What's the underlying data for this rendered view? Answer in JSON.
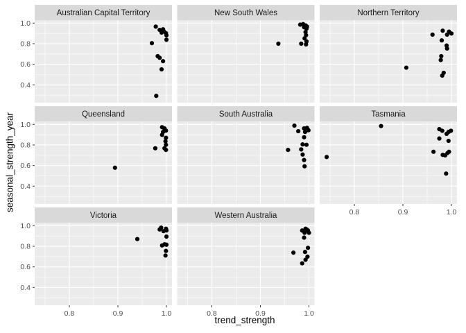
{
  "chart_data": {
    "type": "scatter",
    "title": "",
    "xlabel": "trend_strength",
    "ylabel": "seasonal_strength_year",
    "legend": "none",
    "grid": "on",
    "point_shape": "filled-circle",
    "xlim": [
      0.7286,
      1.0114
    ],
    "ylim": [
      0.227,
      1.029
    ],
    "x_ticks": [
      0.8,
      0.9,
      1.0
    ],
    "x_tick_labels": [
      "0.8",
      "0.9",
      "1.0"
    ],
    "y_ticks": [
      0.4,
      0.6,
      0.8,
      1.0
    ],
    "y_tick_labels": [
      "0.4",
      "0.6",
      "0.8",
      "1.0"
    ],
    "x_minor_ticks": [
      0.75,
      0.85,
      0.95
    ],
    "y_minor_ticks": [
      0.3,
      0.5,
      0.7,
      0.9
    ],
    "facets": [
      {
        "label": "Australian Capital Territory",
        "points": [
          [
            0.978,
            0.966
          ],
          [
            0.986,
            0.934
          ],
          [
            0.993,
            0.94
          ],
          [
            0.995,
            0.918
          ],
          [
            0.99,
            0.908
          ],
          [
            0.999,
            0.903
          ],
          [
            1.0,
            0.881
          ],
          [
            1.0,
            0.838
          ],
          [
            0.97,
            0.805
          ],
          [
            0.982,
            0.679
          ],
          [
            0.986,
            0.663
          ],
          [
            0.993,
            0.63
          ],
          [
            0.99,
            0.551
          ],
          [
            0.979,
            0.293
          ]
        ]
      },
      {
        "label": "New South Wales",
        "points": [
          [
            0.982,
            0.985
          ],
          [
            0.988,
            0.99
          ],
          [
            0.993,
            0.978
          ],
          [
            0.996,
            0.966
          ],
          [
            0.99,
            0.96
          ],
          [
            0.995,
            0.946
          ],
          [
            0.993,
            0.913
          ],
          [
            0.994,
            0.883
          ],
          [
            0.991,
            0.852
          ],
          [
            0.995,
            0.822
          ],
          [
            0.984,
            0.8
          ],
          [
            0.994,
            0.793
          ],
          [
            0.937,
            0.8
          ]
        ]
      },
      {
        "label": "Northern Territory",
        "points": [
          [
            0.982,
            0.926
          ],
          [
            0.995,
            0.917
          ],
          [
            1.0,
            0.899
          ],
          [
            0.991,
            0.888
          ],
          [
            0.961,
            0.888
          ],
          [
            0.98,
            0.832
          ],
          [
            0.99,
            0.782
          ],
          [
            0.991,
            0.753
          ],
          [
            0.979,
            0.679
          ],
          [
            0.978,
            0.641
          ],
          [
            0.907,
            0.567
          ],
          [
            0.984,
            0.517
          ],
          [
            0.981,
            0.49
          ]
        ]
      },
      {
        "label": "Queensland",
        "points": [
          [
            0.991,
            0.973
          ],
          [
            0.996,
            0.961
          ],
          [
            0.999,
            0.939
          ],
          [
            0.993,
            0.927
          ],
          [
            0.991,
            0.898
          ],
          [
            0.999,
            0.87
          ],
          [
            0.998,
            0.836
          ],
          [
            0.999,
            0.802
          ],
          [
            0.996,
            0.768
          ],
          [
            0.999,
            0.752
          ],
          [
            0.977,
            0.768
          ],
          [
            0.894,
            0.579
          ]
        ]
      },
      {
        "label": "South Australia",
        "points": [
          [
            0.97,
            0.988
          ],
          [
            0.978,
            0.934
          ],
          [
            0.99,
            0.961
          ],
          [
            0.996,
            0.966
          ],
          [
            0.999,
            0.943
          ],
          [
            0.992,
            0.927
          ],
          [
            0.99,
            0.875
          ],
          [
            0.987,
            0.806
          ],
          [
            0.995,
            0.802
          ],
          [
            0.984,
            0.757
          ],
          [
            0.957,
            0.752
          ],
          [
            0.987,
            0.707
          ],
          [
            0.99,
            0.654
          ],
          [
            0.991,
            0.593
          ]
        ]
      },
      {
        "label": "Tasmania",
        "points": [
          [
            0.855,
            0.984
          ],
          [
            0.743,
            0.683
          ],
          [
            0.975,
            0.954
          ],
          [
            0.981,
            0.938
          ],
          [
            0.994,
            0.927
          ],
          [
            0.999,
            0.938
          ],
          [
            0.99,
            0.908
          ],
          [
            0.975,
            0.863
          ],
          [
            0.994,
            0.84
          ],
          [
            0.963,
            0.734
          ],
          [
            0.982,
            0.704
          ],
          [
            0.987,
            0.699
          ],
          [
            0.992,
            0.722
          ],
          [
            0.995,
            0.734
          ],
          [
            0.989,
            0.522
          ]
        ]
      },
      {
        "label": "Victoria",
        "points": [
          [
            0.989,
            0.981
          ],
          [
            0.999,
            0.97
          ],
          [
            1.0,
            0.954
          ],
          [
            0.994,
            0.947
          ],
          [
            0.986,
            0.963
          ],
          [
            1.0,
            0.894
          ],
          [
            0.94,
            0.87
          ],
          [
            0.996,
            0.819
          ],
          [
            1.0,
            0.815
          ],
          [
            0.991,
            0.808
          ],
          [
            0.999,
            0.755
          ],
          [
            0.998,
            0.71
          ]
        ]
      },
      {
        "label": "Western Australia",
        "points": [
          [
            0.993,
            0.97
          ],
          [
            0.996,
            0.962
          ],
          [
            0.986,
            0.953
          ],
          [
            0.998,
            0.953
          ],
          [
            1.0,
            0.931
          ],
          [
            0.991,
            0.931
          ],
          [
            0.99,
            0.884
          ],
          [
            0.998,
            0.785
          ],
          [
            0.992,
            0.745
          ],
          [
            0.968,
            0.738
          ],
          [
            0.997,
            0.699
          ],
          [
            0.993,
            0.669
          ],
          [
            0.986,
            0.634
          ]
        ]
      }
    ]
  },
  "style": {
    "figure_bg": "#FFFFFF",
    "panel_bg": "#EBEBEB",
    "strip_bg": "#D9D9D9",
    "grid_color": "#FFFFFF",
    "point_color": "#000000",
    "tick_mark_color": "#333333",
    "tick_label_color": "#4D4D4D",
    "strip_text_color": "#1A1A1A",
    "axis_title_color": "#000000"
  }
}
